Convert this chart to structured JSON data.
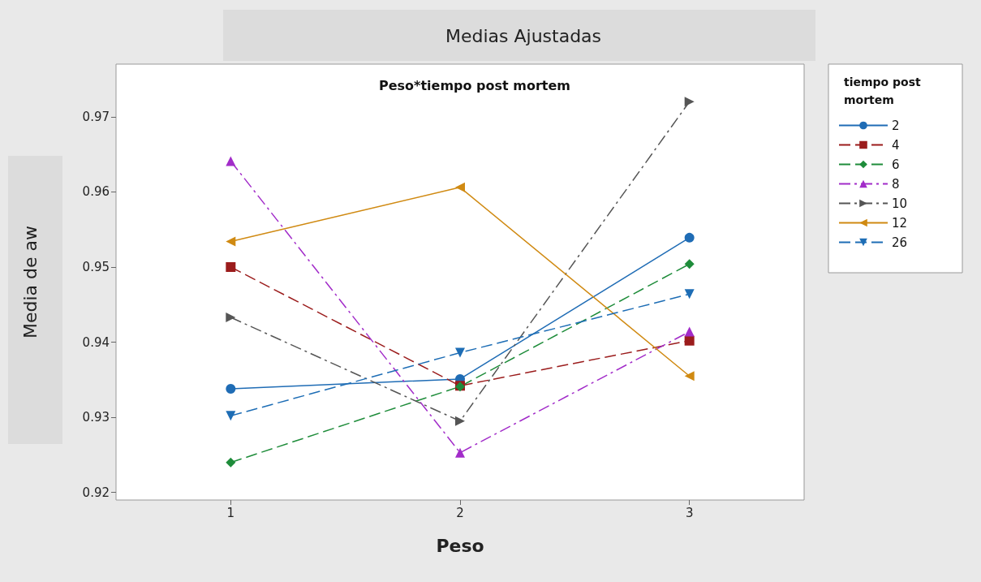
{
  "chart_data": {
    "type": "line",
    "title": "Medias Ajustadas",
    "subtitle": "Peso*tiempo post mortem",
    "xlabel": "Peso",
    "ylabel": "Media de aw",
    "legend_title": "tiempo post mortem",
    "categories": [
      "1",
      "2",
      "3"
    ],
    "series": [
      {
        "name": "2",
        "color": "#1f6cb5",
        "marker": "circle",
        "line_style": "solid",
        "values": [
          0.9338,
          0.9351,
          0.9539
        ]
      },
      {
        "name": "4",
        "color": "#9b1c1c",
        "marker": "square",
        "line_style": "dashed",
        "values": [
          0.95,
          0.9342,
          0.9402
        ]
      },
      {
        "name": "6",
        "color": "#1e8c3a",
        "marker": "diamond",
        "line_style": "dashed",
        "values": [
          0.924,
          0.9341,
          0.9504
        ]
      },
      {
        "name": "8",
        "color": "#a22cc9",
        "marker": "triangle",
        "line_style": "dashdot",
        "values": [
          0.9641,
          0.9253,
          0.9414
        ]
      },
      {
        "name": "10",
        "color": "#555555",
        "marker": "triangle-right",
        "line_style": "dashdot",
        "values": [
          0.9433,
          0.9295,
          0.972
        ]
      },
      {
        "name": "12",
        "color": "#d08a12",
        "marker": "triangle-left",
        "line_style": "solid",
        "values": [
          0.9534,
          0.9606,
          0.9355
        ]
      },
      {
        "name": "26",
        "color": "#1d6db5",
        "marker": "triangle-down",
        "line_style": "dashed",
        "values": [
          0.9302,
          0.9386,
          0.9464
        ]
      }
    ],
    "ylim": [
      0.919,
      0.977
    ],
    "yticks": [
      0.92,
      0.93,
      0.94,
      0.95,
      0.96,
      0.97
    ],
    "grid": false,
    "legend": "right"
  }
}
